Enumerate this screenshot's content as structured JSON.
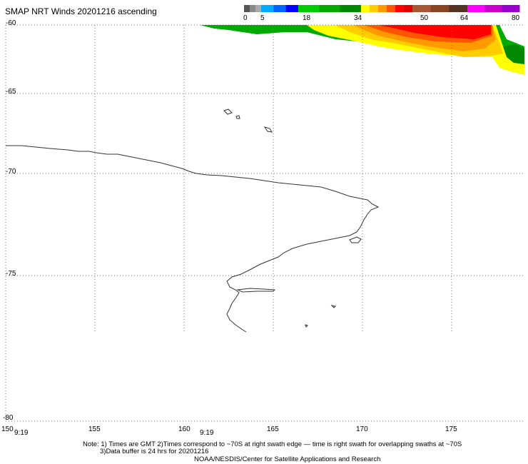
{
  "title": "SMAP NRT Winds 20201216 ascending",
  "legend": {
    "tick_labels": [
      "0",
      "5",
      "18",
      "34",
      "50",
      "64",
      "80"
    ],
    "segments": [
      {
        "from": 0,
        "to": 5,
        "colors": [
          "#555555",
          "#888888",
          "#aaaaaa"
        ]
      },
      {
        "from": 5,
        "to": 18,
        "colors": [
          "#00aaff",
          "#0066ff",
          "#0000ff"
        ]
      },
      {
        "from": 18,
        "to": 34,
        "colors": [
          "#00cc00",
          "#00aa00",
          "#008800"
        ]
      },
      {
        "from": 34,
        "to": 50,
        "colors": [
          "#ffff00",
          "#ffcc00",
          "#ff9900",
          "#ff5500",
          "#ff0000",
          "#dd0000"
        ]
      },
      {
        "from": 50,
        "to": 64,
        "colors": [
          "#aa5533",
          "#884422",
          "#553322"
        ]
      },
      {
        "from": 64,
        "to": 80,
        "colors": [
          "#ff00ff",
          "#cc00cc",
          "#9900cc"
        ]
      }
    ]
  },
  "axes": {
    "lat_labels": [
      "-60",
      "-65",
      "-70",
      "-75",
      "-80"
    ],
    "lon_labels": [
      "150",
      "155",
      "160",
      "165",
      "170",
      "175"
    ],
    "time_labels": [
      "9:19",
      "9:19"
    ]
  },
  "notes": [
    "Note: 1) Times are GMT 2)Times correspond to ~70S at right swath edge — time is right swath for overlapping swaths at ~70S",
    "3)Data buffer is 24 hrs for 20201216",
    "NOAA/NESDIS/Center for Satellite Applications and Research"
  ],
  "colors": {
    "grid": "#777777",
    "coast": "#333333",
    "wind_green": "#00aa00",
    "wind_dark_green": "#008800",
    "wind_yellow": "#ffff00",
    "wind_orange": "#ff9900",
    "wind_red": "#ff0000"
  }
}
